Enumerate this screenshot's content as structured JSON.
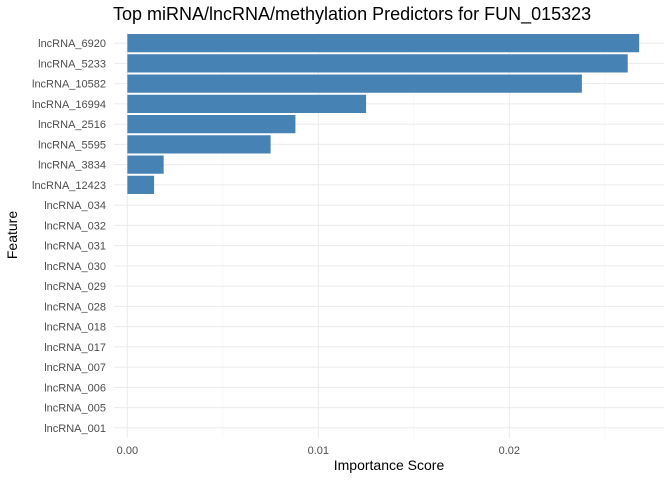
{
  "chart_data": {
    "type": "bar",
    "orientation": "horizontal",
    "title": "Top miRNA/lncRNA/methylation Predictors for FUN_015323",
    "xlabel": "Importance Score",
    "ylabel": "Feature",
    "bar_color": "#4682b4",
    "grid": true,
    "xlim": [
      -0.0007,
      0.0281
    ],
    "xticks": [
      0.0,
      0.01,
      0.02
    ],
    "xtick_labels": [
      "0.00",
      "0.01",
      "0.02"
    ],
    "categories": [
      "lncRNA_6920",
      "lncRNA_5233",
      "lncRNA_10582",
      "lncRNA_16994",
      "lncRNA_2516",
      "lncRNA_5595",
      "lncRNA_3834",
      "lncRNA_12423",
      "lncRNA_034",
      "lncRNA_032",
      "lncRNA_031",
      "lncRNA_030",
      "lncRNA_029",
      "lncRNA_028",
      "lncRNA_018",
      "lncRNA_017",
      "lncRNA_007",
      "lncRNA_006",
      "lncRNA_005",
      "lncRNA_001"
    ],
    "values": [
      0.0268,
      0.0262,
      0.0238,
      0.0125,
      0.0088,
      0.0075,
      0.0019,
      0.0014,
      0,
      0,
      0,
      0,
      0,
      0,
      0,
      0,
      0,
      0,
      0,
      0
    ]
  }
}
